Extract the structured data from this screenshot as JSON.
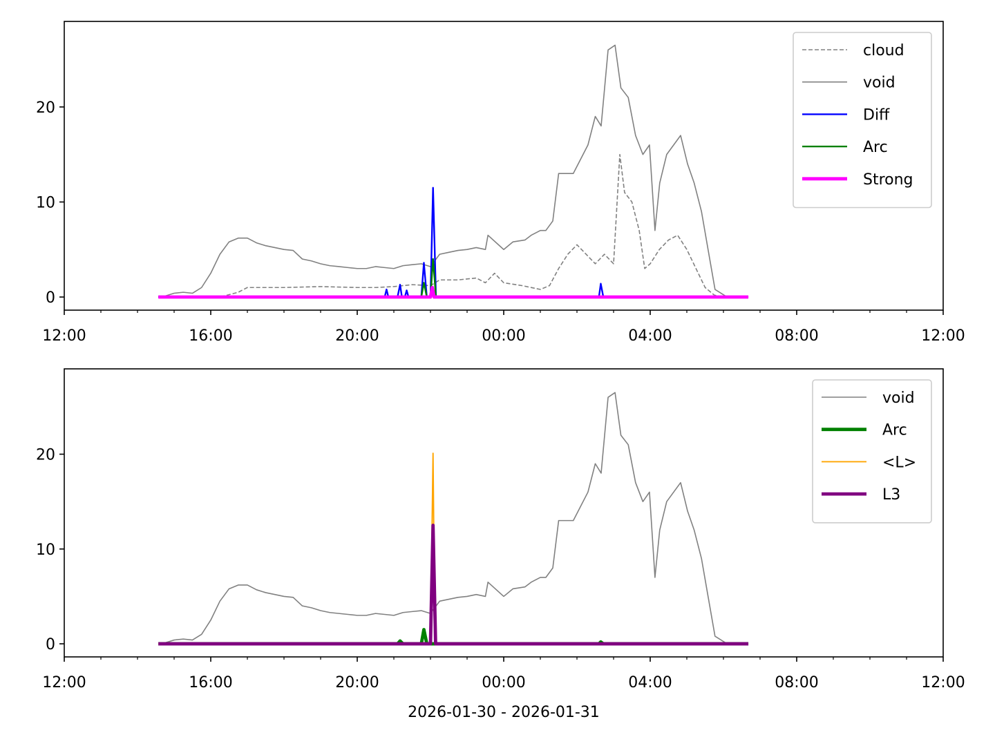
{
  "chart_data": [
    {
      "type": "line",
      "xlim": [
        0,
        24
      ],
      "ylim": [
        -1.38,
        29.0
      ],
      "yticks": [
        0,
        10,
        20
      ],
      "xticks": [
        {
          "value": 0,
          "label": "12:00"
        },
        {
          "value": 4,
          "label": "16:00"
        },
        {
          "value": 8,
          "label": "20:00"
        },
        {
          "value": 12,
          "label": "00:00"
        },
        {
          "value": 16,
          "label": "04:00"
        },
        {
          "value": 20,
          "label": "08:00"
        },
        {
          "value": 24,
          "label": "12:00"
        }
      ],
      "xminor": [
        1,
        2,
        3,
        5,
        6,
        7,
        9,
        10,
        11,
        13,
        14,
        15,
        17,
        18,
        19,
        21,
        22,
        23
      ],
      "legend": "upper right",
      "series": [
        {
          "name": "cloud",
          "color": "#808080",
          "linestyle": "dashed",
          "linewidth": 1,
          "x": [
            2.57,
            4.25,
            4.75,
            5.0,
            6.0,
            7.0,
            8.0,
            8.5,
            9.0,
            9.5,
            10.0,
            10.25,
            10.75,
            11.25,
            11.5,
            11.75,
            12.0,
            12.5,
            13.0,
            13.25,
            13.5,
            13.75,
            14.0,
            14.25,
            14.5,
            14.75,
            15.0,
            15.17,
            15.3,
            15.5,
            15.7,
            15.85,
            16.0,
            16.25,
            16.5,
            16.75,
            17.0,
            17.25,
            17.5,
            17.75,
            18.0,
            18.68
          ],
          "values": [
            0,
            0,
            0.5,
            1.0,
            1.0,
            1.1,
            1.0,
            1.0,
            1.1,
            1.3,
            1.2,
            1.8,
            1.8,
            2.0,
            1.5,
            2.5,
            1.5,
            1.2,
            0.8,
            1.2,
            3.0,
            4.5,
            5.5,
            4.5,
            3.5,
            4.5,
            3.5,
            15.0,
            11.0,
            10.0,
            7.0,
            3.0,
            3.5,
            5.0,
            6.0,
            6.5,
            5.0,
            3.0,
            1.0,
            0.2,
            0,
            0
          ]
        },
        {
          "name": "void",
          "color": "#808080",
          "linestyle": "solid",
          "linewidth": 1,
          "x": [
            2.57,
            2.75,
            3.0,
            3.25,
            3.5,
            3.75,
            4.0,
            4.25,
            4.5,
            4.75,
            5.0,
            5.25,
            5.5,
            5.75,
            6.0,
            6.25,
            6.5,
            6.75,
            7.0,
            7.25,
            7.5,
            7.75,
            8.0,
            8.25,
            8.5,
            8.75,
            9.0,
            9.25,
            9.5,
            9.75,
            10.0,
            10.25,
            10.5,
            10.75,
            11.0,
            11.25,
            11.5,
            11.57,
            12.0,
            12.25,
            12.58,
            12.75,
            13.0,
            13.15,
            13.34,
            13.5,
            13.9,
            14.3,
            14.5,
            14.66,
            14.85,
            15.04,
            15.2,
            15.4,
            15.6,
            15.8,
            15.98,
            16.13,
            16.26,
            16.45,
            16.64,
            16.83,
            17.02,
            17.2,
            17.4,
            17.58,
            17.77,
            18.06,
            18.68
          ],
          "values": [
            0.1,
            0.1,
            0.4,
            0.5,
            0.4,
            1.0,
            2.5,
            4.5,
            5.8,
            6.2,
            6.2,
            5.7,
            5.4,
            5.2,
            5.0,
            4.9,
            4.0,
            3.8,
            3.5,
            3.3,
            3.2,
            3.1,
            3.0,
            3.0,
            3.2,
            3.1,
            3.0,
            3.3,
            3.4,
            3.5,
            3.2,
            4.5,
            4.7,
            4.9,
            5.0,
            5.2,
            5.0,
            6.5,
            5.0,
            5.8,
            6.0,
            6.5,
            7.0,
            7.0,
            8.0,
            13.0,
            13.0,
            16.0,
            19.0,
            18.0,
            26.0,
            26.5,
            22.0,
            21.0,
            17.0,
            15.0,
            16.0,
            7.0,
            12.0,
            15.0,
            16.0,
            17.0,
            14.0,
            12.0,
            9.0,
            5.0,
            0.8,
            0.1,
            0
          ]
        },
        {
          "name": "Diff",
          "color": "#0000ff",
          "linestyle": "solid",
          "linewidth": 1.5,
          "x": [
            2.57,
            8.75,
            8.8,
            8.85,
            9.1,
            9.17,
            9.22,
            9.3,
            9.35,
            9.4,
            9.75,
            9.82,
            9.9,
            10.0,
            10.07,
            10.15,
            14.6,
            14.65,
            14.72,
            18.68
          ],
          "values": [
            0,
            0,
            0.8,
            0,
            0,
            1.3,
            0,
            0,
            0.7,
            0,
            0,
            3.6,
            0,
            0,
            11.5,
            0,
            0,
            1.4,
            0,
            0
          ]
        },
        {
          "name": "Arc",
          "color": "#008000",
          "linestyle": "solid",
          "linewidth": 1.5,
          "x": [
            2.57,
            9.75,
            9.82,
            9.9,
            10.0,
            10.07,
            10.15,
            18.68
          ],
          "values": [
            0,
            0,
            1.5,
            0,
            0,
            4.0,
            0,
            0
          ]
        },
        {
          "name": "Strong",
          "color": "#ff00ff",
          "linestyle": "solid",
          "linewidth": 3,
          "x": [
            2.57,
            10.0,
            10.05,
            10.1,
            18.68
          ],
          "values": [
            0,
            0,
            1.0,
            0,
            0
          ]
        }
      ]
    },
    {
      "type": "line",
      "xlim": [
        0,
        24
      ],
      "ylim": [
        -1.38,
        29.0
      ],
      "yticks": [
        0,
        10,
        20
      ],
      "xticks": [
        {
          "value": 0,
          "label": "12:00"
        },
        {
          "value": 4,
          "label": "16:00"
        },
        {
          "value": 8,
          "label": "20:00"
        },
        {
          "value": 12,
          "label": "00:00"
        },
        {
          "value": 16,
          "label": "04:00"
        },
        {
          "value": 20,
          "label": "08:00"
        },
        {
          "value": 24,
          "label": "12:00"
        }
      ],
      "xminor": [
        1,
        2,
        3,
        5,
        6,
        7,
        9,
        10,
        11,
        13,
        14,
        15,
        17,
        18,
        19,
        21,
        22,
        23
      ],
      "xlabel": "2026-01-30 - 2026-01-31",
      "legend": "upper right",
      "series": [
        {
          "name": "void",
          "color": "#808080",
          "linestyle": "solid",
          "linewidth": 1,
          "x": [
            2.57,
            2.75,
            3.0,
            3.25,
            3.5,
            3.75,
            4.0,
            4.25,
            4.5,
            4.75,
            5.0,
            5.25,
            5.5,
            5.75,
            6.0,
            6.25,
            6.5,
            6.75,
            7.0,
            7.25,
            7.5,
            7.75,
            8.0,
            8.25,
            8.5,
            8.75,
            9.0,
            9.25,
            9.5,
            9.75,
            10.0,
            10.25,
            10.5,
            10.75,
            11.0,
            11.25,
            11.5,
            11.57,
            12.0,
            12.25,
            12.58,
            12.75,
            13.0,
            13.15,
            13.34,
            13.5,
            13.9,
            14.3,
            14.5,
            14.66,
            14.85,
            15.04,
            15.2,
            15.4,
            15.6,
            15.8,
            15.98,
            16.13,
            16.26,
            16.45,
            16.64,
            16.83,
            17.02,
            17.2,
            17.4,
            17.58,
            17.77,
            18.06,
            18.68
          ],
          "values": [
            0.1,
            0.1,
            0.4,
            0.5,
            0.4,
            1.0,
            2.5,
            4.5,
            5.8,
            6.2,
            6.2,
            5.7,
            5.4,
            5.2,
            5.0,
            4.9,
            4.0,
            3.8,
            3.5,
            3.3,
            3.2,
            3.1,
            3.0,
            3.0,
            3.2,
            3.1,
            3.0,
            3.3,
            3.4,
            3.5,
            3.2,
            4.5,
            4.7,
            4.9,
            5.0,
            5.2,
            5.0,
            6.5,
            5.0,
            5.8,
            6.0,
            6.5,
            7.0,
            7.0,
            8.0,
            13.0,
            13.0,
            16.0,
            19.0,
            18.0,
            26.0,
            26.5,
            22.0,
            21.0,
            17.0,
            15.0,
            16.0,
            7.0,
            12.0,
            15.0,
            16.0,
            17.0,
            14.0,
            12.0,
            9.0,
            5.0,
            0.8,
            0.1,
            0
          ]
        },
        {
          "name": "Arc",
          "color": "#008000",
          "linestyle": "solid",
          "linewidth": 3,
          "x": [
            2.57,
            9.1,
            9.17,
            9.25,
            9.75,
            9.82,
            9.9,
            14.6,
            14.65,
            14.72,
            18.68
          ],
          "values": [
            0,
            0,
            0.3,
            0,
            0,
            1.5,
            0,
            0,
            0.2,
            0,
            0
          ]
        },
        {
          "name": "<L>",
          "color": "#ffa500",
          "linestyle": "solid",
          "linewidth": 1.2,
          "x": [
            2.57,
            10.0,
            10.07,
            10.12,
            18.68
          ],
          "values": [
            0,
            0,
            20.1,
            0,
            0
          ]
        },
        {
          "name": "L3",
          "color": "#800080",
          "linestyle": "solid",
          "linewidth": 3,
          "x": [
            2.57,
            10.0,
            10.07,
            10.14,
            18.68
          ],
          "values": [
            0,
            0,
            12.5,
            0,
            0
          ]
        }
      ]
    }
  ]
}
